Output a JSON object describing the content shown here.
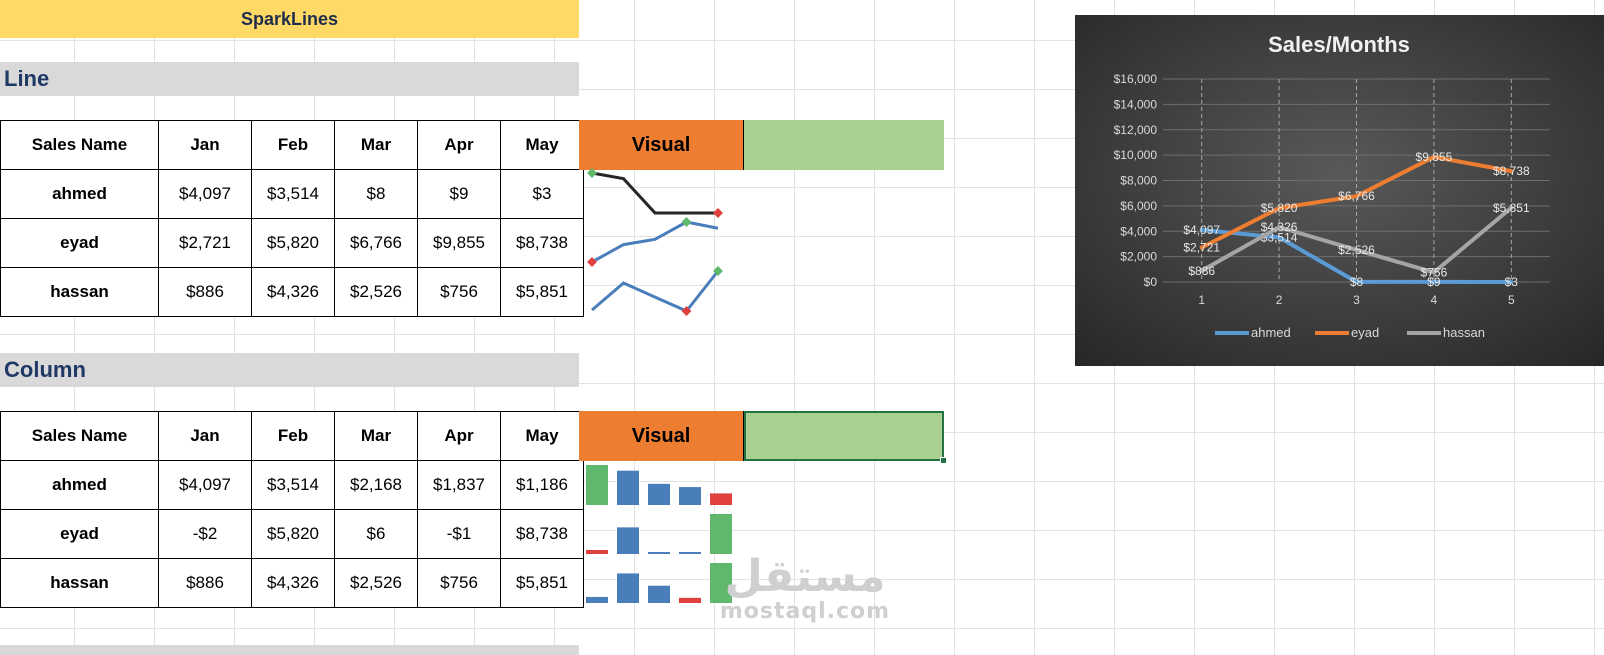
{
  "title": "SparkLines",
  "sections": {
    "line_label": "Line",
    "column_label": "Column"
  },
  "line_table": {
    "headers": [
      "Sales Name",
      "Jan",
      "Feb",
      "Mar",
      "Apr",
      "May"
    ],
    "rows": [
      {
        "name": "ahmed",
        "values": [
          "$4,097",
          "$3,514",
          "$8",
          "$9",
          "$3"
        ]
      },
      {
        "name": "eyad",
        "values": [
          "$2,721",
          "$5,820",
          "$6,766",
          "$9,855",
          "$8,738"
        ]
      },
      {
        "name": "hassan",
        "values": [
          "$886",
          "$4,326",
          "$2,526",
          "$756",
          "$5,851"
        ]
      }
    ],
    "visual_label": "Visual"
  },
  "column_table": {
    "headers": [
      "Sales Name",
      "Jan",
      "Feb",
      "Mar",
      "Apr",
      "May"
    ],
    "rows": [
      {
        "name": "ahmed",
        "values": [
          "$4,097",
          "$3,514",
          "$2,168",
          "$1,837",
          "$1,186"
        ]
      },
      {
        "name": "eyad",
        "values": [
          "-$2",
          "$5,820",
          "$6",
          "-$1",
          "$8,738"
        ]
      },
      {
        "name": "hassan",
        "values": [
          "$886",
          "$4,326",
          "$2,526",
          "$756",
          "$5,851"
        ]
      }
    ],
    "visual_label": "Visual"
  },
  "line_sparklines": [
    {
      "values": [
        4097,
        3514,
        8,
        9,
        3
      ],
      "color": "#262626"
    },
    {
      "values": [
        2721,
        5820,
        6766,
        9855,
        8738
      ],
      "color": "#4a7ebb"
    },
    {
      "values": [
        886,
        4326,
        2526,
        756,
        5851
      ],
      "color": "#4a7ebb"
    }
  ],
  "column_sparklines": [
    {
      "values": [
        4097,
        3514,
        2168,
        1837,
        1186
      ]
    },
    {
      "values": [
        -2,
        5820,
        6,
        -1,
        8738
      ]
    },
    {
      "values": [
        886,
        4326,
        2526,
        756,
        5851
      ]
    }
  ],
  "sparkline_colors": {
    "high": "#5fb86b",
    "low": "#e0413e",
    "bar": "#4a7ebb"
  },
  "chart_data": {
    "type": "line",
    "title": "Sales/Months",
    "x": [
      1,
      2,
      3,
      4,
      5
    ],
    "ylim": [
      0,
      16000
    ],
    "yticks": [
      "$0",
      "$2,000",
      "$4,000",
      "$6,000",
      "$8,000",
      "$10,000",
      "$12,000",
      "$14,000",
      "$16,000"
    ],
    "grid": true,
    "legend": "bottom",
    "series": [
      {
        "name": "ahmed",
        "values": [
          4097,
          3514,
          8,
          9,
          3
        ],
        "labels": [
          "$4,097",
          "$3,514",
          "$8",
          "$9",
          "$3"
        ],
        "color": "#5b9bd5"
      },
      {
        "name": "eyad",
        "values": [
          2721,
          5820,
          6766,
          9855,
          8738
        ],
        "labels": [
          "$2,721",
          "$5,820",
          "$6,766",
          "$9,855",
          "$8,738"
        ],
        "color": "#ed7d31"
      },
      {
        "name": "hassan",
        "values": [
          886,
          4326,
          2526,
          756,
          5851
        ],
        "labels": [
          "$886",
          "$4,326",
          "$2,526",
          "$756",
          "$5,851"
        ],
        "color": "#a5a5a5"
      }
    ]
  },
  "watermark": {
    "arabic": "مستقل",
    "latin": "mostaql.com"
  }
}
